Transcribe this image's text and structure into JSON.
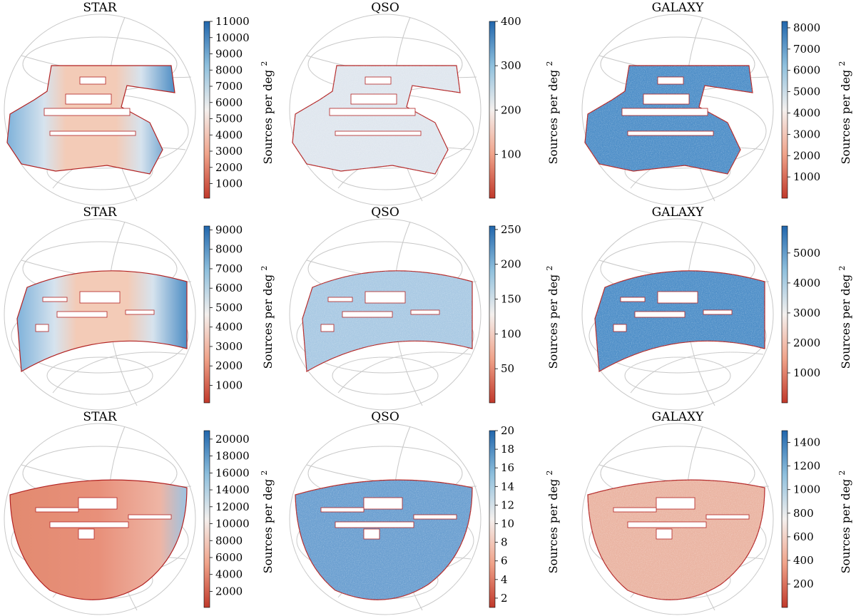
{
  "figure": {
    "panels": [
      {
        "title": "STAR",
        "cbar_label": "Sources per deg",
        "cbar_sup": "2",
        "cbar_ticks": [
          "1000",
          "2000",
          "3000",
          "4000",
          "5000",
          "6000",
          "7000",
          "8000",
          "9000",
          "10000",
          "11000"
        ],
        "vmin": 100,
        "vmax": 11000,
        "footprint": "north-large",
        "texture": "gradient"
      },
      {
        "title": "QSO",
        "cbar_label": "Sources per deg",
        "cbar_sup": "2",
        "cbar_ticks": [
          "100",
          "200",
          "300",
          "400"
        ],
        "vmin": 1,
        "vmax": 400,
        "footprint": "north-large",
        "texture": "noisy-light"
      },
      {
        "title": "GALAXY",
        "cbar_label": "Sources per deg",
        "cbar_sup": "2",
        "cbar_ticks": [
          "1000",
          "2000",
          "3000",
          "4000",
          "5000",
          "6000",
          "7000",
          "8000"
        ],
        "vmin": 1,
        "vmax": 8300,
        "footprint": "north-large",
        "texture": "noisy-blue"
      },
      {
        "title": "STAR",
        "cbar_label": "Sources per deg",
        "cbar_sup": "2",
        "cbar_ticks": [
          "1000",
          "2000",
          "3000",
          "4000",
          "5000",
          "6000",
          "7000",
          "8000",
          "9000"
        ],
        "vmin": 100,
        "vmax": 9200,
        "footprint": "band",
        "texture": "gradient"
      },
      {
        "title": "QSO",
        "cbar_label": "Sources per deg",
        "cbar_sup": "2",
        "cbar_ticks": [
          "50",
          "100",
          "150",
          "200",
          "250"
        ],
        "vmin": 1,
        "vmax": 255,
        "footprint": "band",
        "texture": "noisy-mid"
      },
      {
        "title": "GALAXY",
        "cbar_label": "Sources per deg",
        "cbar_sup": "2",
        "cbar_ticks": [
          "1000",
          "2000",
          "3000",
          "4000",
          "5000"
        ],
        "vmin": 1,
        "vmax": 5900,
        "footprint": "band",
        "texture": "noisy-blue"
      },
      {
        "title": "STAR",
        "cbar_label": "Sources per deg",
        "cbar_sup": "2",
        "cbar_ticks": [
          "2000",
          "4000",
          "6000",
          "8000",
          "10000",
          "12000",
          "14000",
          "16000",
          "18000",
          "20000"
        ],
        "vmin": 100,
        "vmax": 21000,
        "footprint": "dome",
        "texture": "red-gradient"
      },
      {
        "title": "QSO",
        "cbar_label": "Sources per deg",
        "cbar_sup": "2",
        "cbar_ticks": [
          "2",
          "4",
          "6",
          "8",
          "10",
          "12",
          "14",
          "16",
          "18",
          "20"
        ],
        "vmin": 1,
        "vmax": 20,
        "footprint": "dome",
        "texture": "speckle-blue"
      },
      {
        "title": "GALAXY",
        "cbar_label": "Sources per deg",
        "cbar_sup": "2",
        "cbar_ticks": [
          "200",
          "400",
          "600",
          "800",
          "1000",
          "1200",
          "1400"
        ],
        "vmin": 1,
        "vmax": 1500,
        "footprint": "dome",
        "texture": "noisy-red"
      }
    ]
  },
  "colors": {
    "low": "#c0392b",
    "mid": "#f4f0ee",
    "high": "#2166ac",
    "grid": "#c8c8c8",
    "mask_edge": "#b22222"
  }
}
